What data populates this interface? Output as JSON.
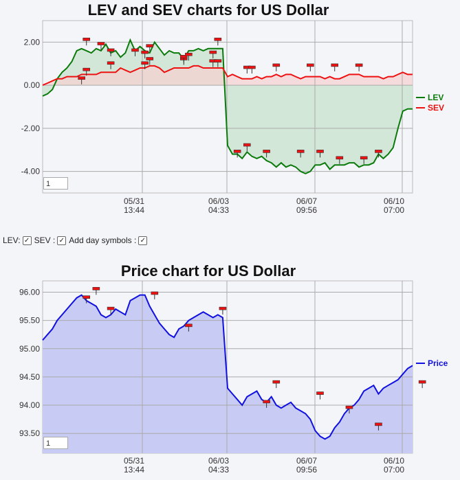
{
  "controls": {
    "lev_label": "LEV:",
    "sev_label": "SEV :",
    "day_symbols_label": "Add day symbols :",
    "lev_checked": true,
    "sev_checked": true,
    "day_symbols_checked": true
  },
  "zoom_inputs": {
    "top": "1",
    "bottom": "1"
  },
  "colors": {
    "lev": "#0a7a0a",
    "sev": "#ee1111",
    "price": "#1010e0",
    "lev_fill": "#cfe6d4",
    "sev_fill": "#f6d2d2",
    "price_fill": "#c8cbf3"
  },
  "chart_data": [
    {
      "type": "line",
      "title": "LEV and SEV charts for US Dollar",
      "x_ticks": [
        {
          "date": "05/31",
          "time": "13:44"
        },
        {
          "date": "06/03",
          "time": "04:33"
        },
        {
          "date": "06/07",
          "time": "09:56"
        },
        {
          "date": "06/10",
          "time": "07:00"
        }
      ],
      "y_ticks": [
        "2.00",
        "0.00",
        "-2.00",
        "-4.00"
      ],
      "ylim": [
        -5.0,
        3.0
      ],
      "legend_placement": "right",
      "series": [
        {
          "name": "LEV",
          "values": [
            -0.5,
            -0.4,
            -0.2,
            0.3,
            0.6,
            0.8,
            1.1,
            1.6,
            1.7,
            1.6,
            1.5,
            1.7,
            1.6,
            1.9,
            1.5,
            1.6,
            1.3,
            1.5,
            2.1,
            1.6,
            1.8,
            1.6,
            1.5,
            2.0,
            1.7,
            1.4,
            1.6,
            1.5,
            1.5,
            1.2,
            1.6,
            1.6,
            1.7,
            1.6,
            1.7,
            1.7,
            1.7,
            1.7,
            -2.8,
            -3.2,
            -3.2,
            -3.4,
            -3.1,
            -3.3,
            -3.4,
            -3.3,
            -3.5,
            -3.6,
            -3.8,
            -3.6,
            -3.8,
            -3.7,
            -3.8,
            -4.0,
            -4.1,
            -4.0,
            -3.7,
            -3.7,
            -3.6,
            -3.9,
            -3.7,
            -3.7,
            -3.7,
            -3.6,
            -3.6,
            -3.8,
            -3.7,
            -3.7,
            -3.6,
            -3.2,
            -3.4,
            -3.2,
            -2.9,
            -2.0,
            -1.2,
            -1.1,
            -1.1
          ]
        },
        {
          "name": "SEV",
          "values": [
            0.0,
            0.1,
            0.2,
            0.3,
            0.3,
            0.4,
            0.4,
            0.4,
            0.5,
            0.5,
            0.5,
            0.5,
            0.6,
            0.6,
            0.6,
            0.6,
            0.8,
            0.7,
            0.6,
            0.7,
            0.8,
            0.8,
            0.9,
            0.9,
            0.8,
            0.6,
            0.7,
            0.8,
            0.8,
            0.8,
            0.8,
            0.9,
            0.9,
            0.8,
            0.8,
            0.8,
            0.8,
            0.8,
            0.4,
            0.5,
            0.4,
            0.3,
            0.3,
            0.3,
            0.4,
            0.3,
            0.4,
            0.4,
            0.5,
            0.4,
            0.5,
            0.5,
            0.4,
            0.3,
            0.4,
            0.4,
            0.4,
            0.4,
            0.3,
            0.4,
            0.3,
            0.3,
            0.4,
            0.5,
            0.5,
            0.5,
            0.4,
            0.4,
            0.4,
            0.4,
            0.3,
            0.4,
            0.4,
            0.5,
            0.6,
            0.5,
            0.5
          ]
        }
      ],
      "day_markers": {
        "LEV": [
          [
            9,
            2.1
          ],
          [
            12,
            1.9
          ],
          [
            14,
            1.6
          ],
          [
            19,
            1.6
          ],
          [
            21,
            1.5
          ],
          [
            22,
            1.8
          ],
          [
            29,
            1.2
          ],
          [
            35,
            1.5
          ],
          [
            36,
            2.1
          ],
          [
            40,
            -3.1
          ],
          [
            42,
            -2.8
          ],
          [
            46,
            -3.1
          ],
          [
            53,
            -3.1
          ],
          [
            57,
            -3.1
          ],
          [
            61,
            -3.4
          ],
          [
            66,
            -3.4
          ],
          [
            69,
            -3.1
          ]
        ],
        "SEV": [
          [
            8,
            0.3
          ],
          [
            9,
            0.7
          ],
          [
            14,
            1.0
          ],
          [
            21,
            1.0
          ],
          [
            22,
            1.2
          ],
          [
            29,
            1.3
          ],
          [
            30,
            1.4
          ],
          [
            35,
            1.1
          ],
          [
            36,
            1.1
          ],
          [
            42,
            0.8
          ],
          [
            43,
            0.8
          ],
          [
            48,
            0.9
          ],
          [
            55,
            0.9
          ],
          [
            60,
            0.9
          ],
          [
            65,
            0.9
          ]
        ]
      }
    },
    {
      "type": "area",
      "title": "Price chart for US Dollar",
      "x_ticks": [
        {
          "date": "05/31",
          "time": "13:44"
        },
        {
          "date": "06/03",
          "time": "04:33"
        },
        {
          "date": "06/07",
          "time": "09:56"
        },
        {
          "date": "06/10",
          "time": "07:00"
        }
      ],
      "y_ticks": [
        "96.00",
        "95.50",
        "95.00",
        "94.50",
        "94.00",
        "93.50"
      ],
      "ylim": [
        93.15,
        96.2
      ],
      "legend_placement": "right",
      "series": [
        {
          "name": "Price",
          "values": [
            95.15,
            95.25,
            95.35,
            95.5,
            95.6,
            95.7,
            95.8,
            95.9,
            95.95,
            95.85,
            95.8,
            95.75,
            95.6,
            95.55,
            95.6,
            95.7,
            95.65,
            95.6,
            95.85,
            95.9,
            95.95,
            95.95,
            95.75,
            95.6,
            95.45,
            95.35,
            95.25,
            95.2,
            95.35,
            95.4,
            95.5,
            95.55,
            95.6,
            95.65,
            95.6,
            95.55,
            95.6,
            95.55,
            94.3,
            94.2,
            94.1,
            94.0,
            94.15,
            94.2,
            94.25,
            94.1,
            94.05,
            94.15,
            94.0,
            93.95,
            94.0,
            94.05,
            93.95,
            93.9,
            93.85,
            93.75,
            93.55,
            93.45,
            93.4,
            93.45,
            93.6,
            93.7,
            93.85,
            93.95,
            94.0,
            94.1,
            94.25,
            94.3,
            94.35,
            94.2,
            94.3,
            94.35,
            94.4,
            94.45,
            94.55,
            94.65,
            94.7
          ]
        }
      ],
      "day_markers": [
        [
          9,
          95.9
        ],
        [
          11,
          96.05
        ],
        [
          14,
          95.7
        ],
        [
          23,
          95.97
        ],
        [
          30,
          95.4
        ],
        [
          37,
          95.7
        ],
        [
          46,
          94.05
        ],
        [
          48,
          94.4
        ],
        [
          57,
          94.2
        ],
        [
          63,
          93.95
        ],
        [
          69,
          93.65
        ],
        [
          78,
          94.4
        ]
      ]
    }
  ]
}
